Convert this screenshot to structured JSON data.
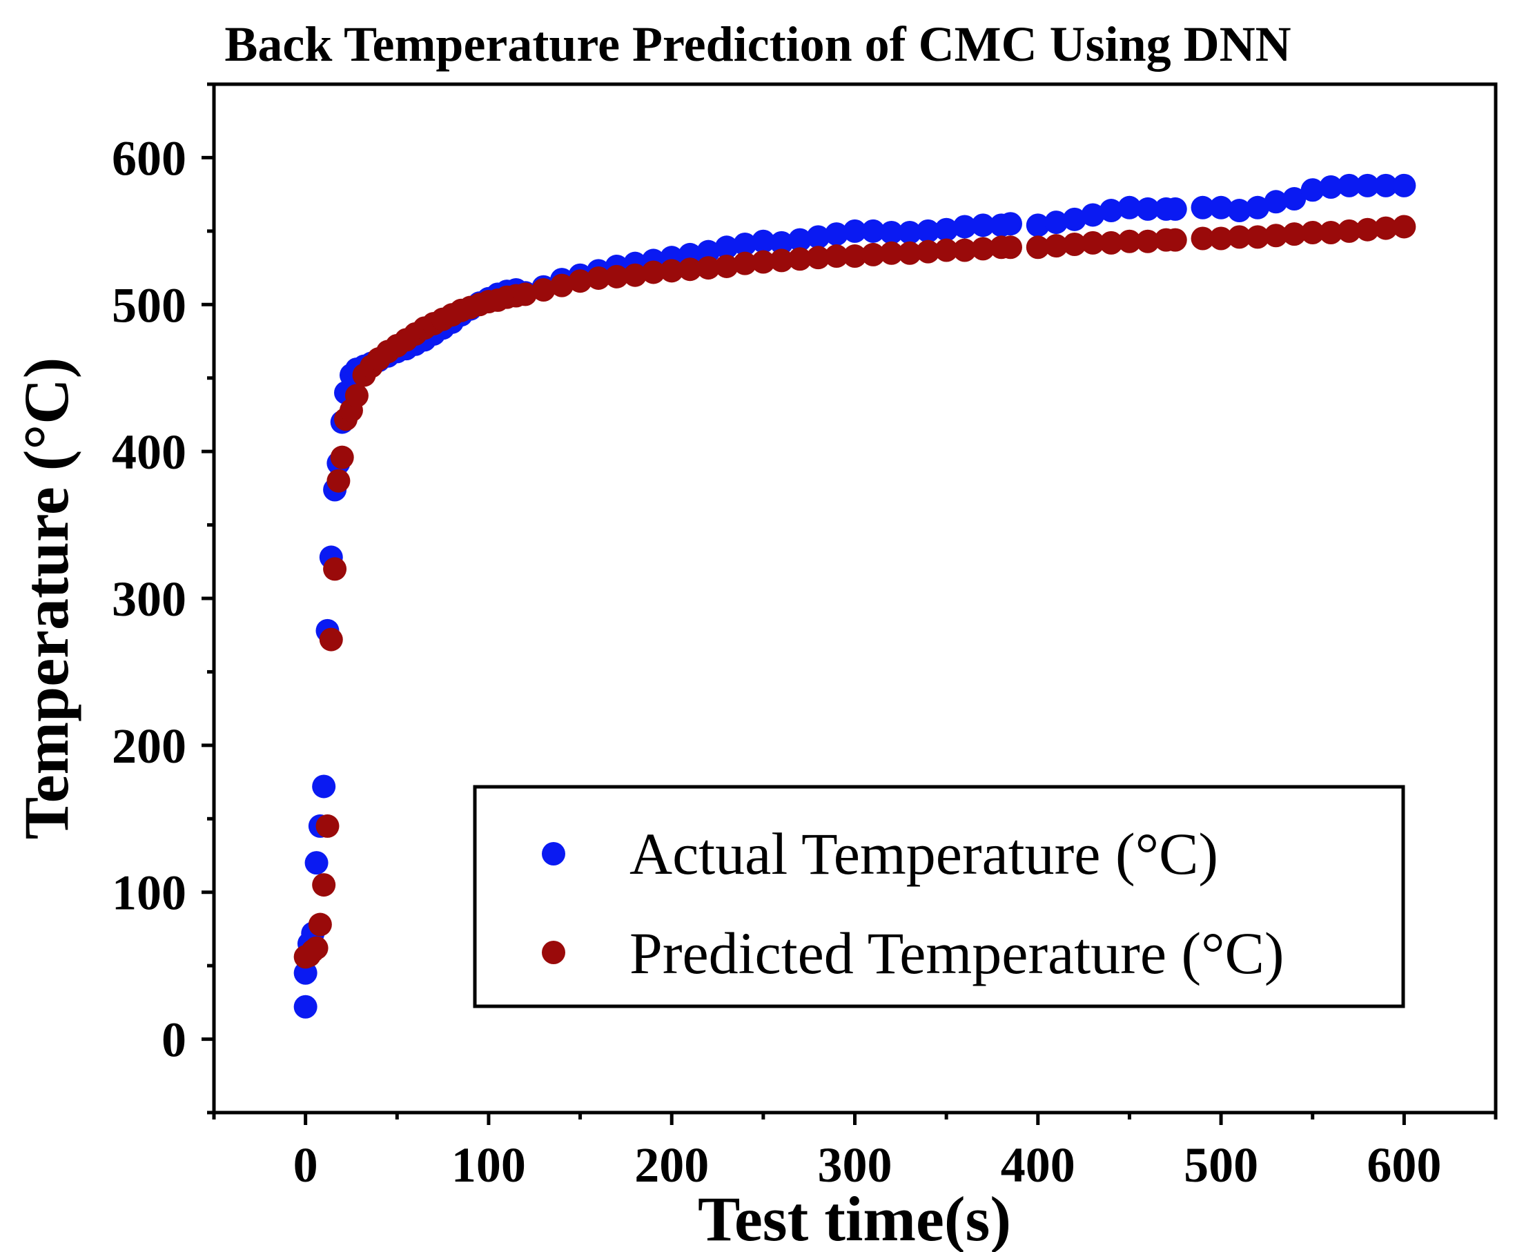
{
  "chart_data": {
    "type": "scatter",
    "title": "Back Temperature Prediction of CMC Using DNN",
    "xlabel": "Test time(s)",
    "ylabel": "Temperature (°C)",
    "xlim": [
      -50,
      650
    ],
    "ylim": [
      -50,
      650
    ],
    "xticks": [
      0,
      100,
      200,
      300,
      400,
      500,
      600
    ],
    "yticks": [
      0,
      100,
      200,
      300,
      400,
      500,
      600
    ],
    "legend_position": "bottom-right",
    "series": [
      {
        "name": "Actual Temperature (°C)",
        "color": "#0a1af2",
        "x": [
          0,
          0,
          2,
          4,
          6,
          8,
          10,
          12,
          14,
          16,
          18,
          20,
          22,
          25,
          28,
          32,
          36,
          40,
          45,
          50,
          55,
          60,
          65,
          70,
          75,
          80,
          85,
          90,
          95,
          100,
          105,
          110,
          115,
          120,
          130,
          140,
          150,
          160,
          170,
          180,
          190,
          200,
          210,
          220,
          230,
          240,
          250,
          260,
          270,
          280,
          290,
          300,
          310,
          320,
          330,
          340,
          350,
          360,
          370,
          380,
          385,
          400,
          410,
          420,
          430,
          440,
          450,
          460,
          470,
          475,
          490,
          500,
          510,
          520,
          530,
          540,
          550,
          560,
          570,
          580,
          590,
          600
        ],
        "y": [
          22,
          45,
          65,
          72,
          120,
          145,
          172,
          278,
          328,
          374,
          392,
          420,
          440,
          452,
          456,
          458,
          460,
          462,
          465,
          468,
          470,
          473,
          476,
          480,
          484,
          488,
          493,
          497,
          501,
          504,
          507,
          509,
          510,
          508,
          512,
          517,
          520,
          523,
          526,
          528,
          530,
          532,
          534,
          536,
          539,
          541,
          543,
          542,
          544,
          546,
          548,
          550,
          550,
          549,
          549,
          550,
          551,
          553,
          554,
          554,
          555,
          554,
          556,
          558,
          561,
          564,
          566,
          565,
          565,
          565,
          566,
          566,
          564,
          566,
          570,
          572,
          578,
          580,
          581,
          581,
          581,
          581
        ]
      },
      {
        "name": "Predicted Temperature (°C)",
        "color": "#9a0a0a",
        "x": [
          0,
          2,
          4,
          6,
          8,
          10,
          12,
          14,
          16,
          18,
          20,
          22,
          25,
          28,
          32,
          36,
          40,
          45,
          50,
          55,
          60,
          65,
          70,
          75,
          80,
          85,
          90,
          95,
          100,
          105,
          110,
          115,
          120,
          130,
          140,
          150,
          160,
          170,
          180,
          190,
          200,
          210,
          220,
          230,
          240,
          250,
          260,
          270,
          280,
          290,
          300,
          310,
          320,
          330,
          340,
          350,
          360,
          370,
          380,
          385,
          400,
          410,
          420,
          430,
          440,
          450,
          460,
          470,
          475,
          490,
          500,
          510,
          520,
          530,
          540,
          550,
          560,
          570,
          580,
          590,
          600
        ],
        "y": [
          56,
          57,
          60,
          62,
          78,
          105,
          145,
          272,
          320,
          380,
          396,
          422,
          428,
          438,
          452,
          458,
          463,
          468,
          472,
          476,
          480,
          484,
          487,
          490,
          493,
          496,
          498,
          500,
          502,
          503,
          505,
          506,
          507,
          510,
          513,
          516,
          518,
          519,
          520,
          522,
          523,
          524,
          525,
          526,
          528,
          529,
          530,
          531,
          532,
          533,
          533,
          534,
          535,
          535,
          536,
          537,
          537,
          538,
          539,
          539,
          539,
          540,
          541,
          542,
          542,
          543,
          543,
          544,
          544,
          545,
          545,
          546,
          546,
          547,
          548,
          549,
          549,
          550,
          551,
          552,
          553
        ]
      }
    ]
  }
}
